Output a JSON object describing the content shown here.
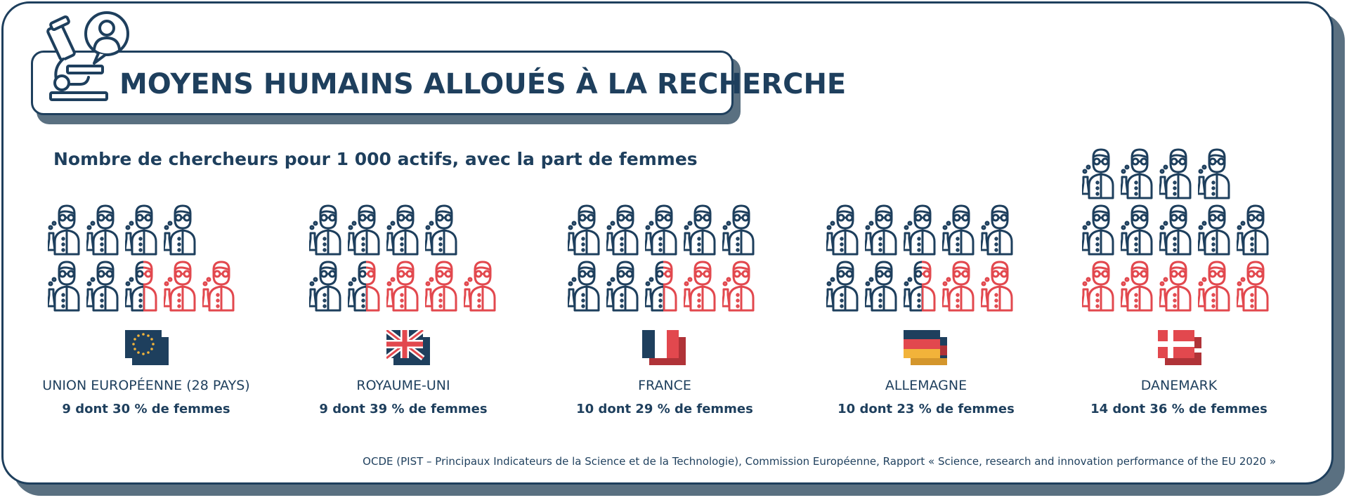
{
  "header": {
    "title": "MOYENS HUMAINS ALLOUÉS À LA RECHERCHE",
    "logo_icon": "microscope-researcher-icon"
  },
  "subtitle": "Nombre de chercheurs pour 1 000 actifs, avec la part de femmes",
  "colors": {
    "navy": "#1e3f5d",
    "red": "#e2484e",
    "shadow": "#5a7081"
  },
  "countries": [
    {
      "name": "UNION EUROPÉENNE (28 PAYS)",
      "stat": "9 dont 30 % de femmes",
      "researchers": 9,
      "women_pct": 30,
      "flag": "eu-flag-icon"
    },
    {
      "name": "ROYAUME-UNI",
      "stat": "9 dont 39 % de femmes",
      "researchers": 9,
      "women_pct": 39,
      "flag": "uk-flag-icon"
    },
    {
      "name": "FRANCE",
      "stat": "10 dont 29 % de femmes",
      "researchers": 10,
      "women_pct": 29,
      "flag": "france-flag-icon"
    },
    {
      "name": "ALLEMAGNE",
      "stat": "10 dont 23 % de femmes",
      "researchers": 10,
      "women_pct": 23,
      "flag": "germany-flag-icon"
    },
    {
      "name": "DANEMARK",
      "stat": "14 dont 36 % de femmes",
      "researchers": 14,
      "women_pct": 36,
      "flag": "denmark-flag-icon"
    }
  ],
  "source": "OCDE (PIST – Principaux Indicateurs de la Science et de la Technologie), Commission Européenne, Rapport « Science, research and innovation performance of the EU 2020 »"
}
